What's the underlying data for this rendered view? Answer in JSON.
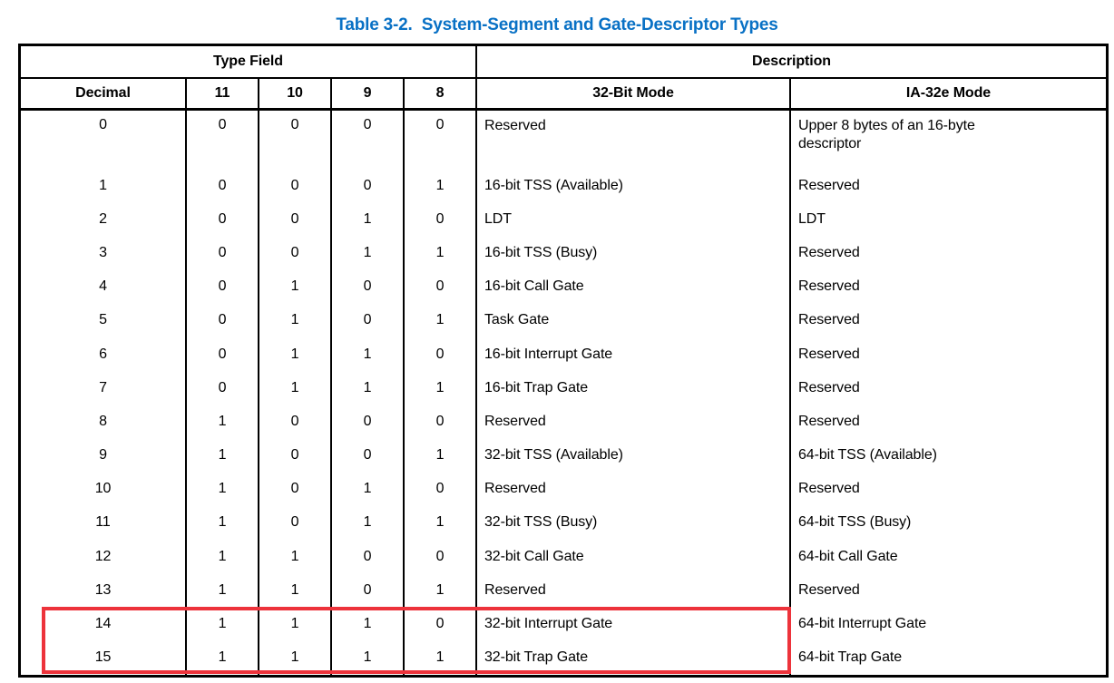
{
  "title": "Table 3-2.  System-Segment and Gate-Descriptor Types",
  "colors": {
    "title_blue": "#0971C5",
    "highlight_red": "#ED333B",
    "table_border": "#000000"
  },
  "table": {
    "group_headers": {
      "type_field": "Type Field",
      "description": "Description"
    },
    "columns": {
      "decimal": "Decimal",
      "b11": "11",
      "b10": "10",
      "b9": "9",
      "b8": "8",
      "mode32": "32-Bit Mode",
      "ia32e": "IA-32e Mode"
    },
    "rows": [
      {
        "decimal": "0",
        "b11": "0",
        "b10": "0",
        "b9": "0",
        "b8": "0",
        "mode32": "Reserved",
        "ia32e": "Upper 8 bytes of an 16-byte\ndescriptor"
      },
      {
        "decimal": "1",
        "b11": "0",
        "b10": "0",
        "b9": "0",
        "b8": "1",
        "mode32": "16-bit TSS (Available)",
        "ia32e": "Reserved"
      },
      {
        "decimal": "2",
        "b11": "0",
        "b10": "0",
        "b9": "1",
        "b8": "0",
        "mode32": "LDT",
        "ia32e": "LDT"
      },
      {
        "decimal": "3",
        "b11": "0",
        "b10": "0",
        "b9": "1",
        "b8": "1",
        "mode32": "16-bit TSS (Busy)",
        "ia32e": "Reserved"
      },
      {
        "decimal": "4",
        "b11": "0",
        "b10": "1",
        "b9": "0",
        "b8": "0",
        "mode32": "16-bit Call Gate",
        "ia32e": "Reserved"
      },
      {
        "decimal": "5",
        "b11": "0",
        "b10": "1",
        "b9": "0",
        "b8": "1",
        "mode32": "Task Gate",
        "ia32e": "Reserved"
      },
      {
        "decimal": "6",
        "b11": "0",
        "b10": "1",
        "b9": "1",
        "b8": "0",
        "mode32": "16-bit Interrupt Gate",
        "ia32e": "Reserved"
      },
      {
        "decimal": "7",
        "b11": "0",
        "b10": "1",
        "b9": "1",
        "b8": "1",
        "mode32": "16-bit Trap Gate",
        "ia32e": "Reserved"
      },
      {
        "decimal": "8",
        "b11": "1",
        "b10": "0",
        "b9": "0",
        "b8": "0",
        "mode32": "Reserved",
        "ia32e": "Reserved"
      },
      {
        "decimal": "9",
        "b11": "1",
        "b10": "0",
        "b9": "0",
        "b8": "1",
        "mode32": "32-bit TSS (Available)",
        "ia32e": "64-bit TSS (Available)"
      },
      {
        "decimal": "10",
        "b11": "1",
        "b10": "0",
        "b9": "1",
        "b8": "0",
        "mode32": "Reserved",
        "ia32e": "Reserved"
      },
      {
        "decimal": "11",
        "b11": "1",
        "b10": "0",
        "b9": "1",
        "b8": "1",
        "mode32": "32-bit TSS (Busy)",
        "ia32e": "64-bit TSS (Busy)"
      },
      {
        "decimal": "12",
        "b11": "1",
        "b10": "1",
        "b9": "0",
        "b8": "0",
        "mode32": "32-bit Call Gate",
        "ia32e": "64-bit Call Gate"
      },
      {
        "decimal": "13",
        "b11": "1",
        "b10": "1",
        "b9": "0",
        "b8": "1",
        "mode32": "Reserved",
        "ia32e": "Reserved"
      },
      {
        "decimal": "14",
        "b11": "1",
        "b10": "1",
        "b9": "1",
        "b8": "0",
        "mode32": "32-bit Interrupt Gate",
        "ia32e": "64-bit Interrupt Gate"
      },
      {
        "decimal": "15",
        "b11": "1",
        "b10": "1",
        "b9": "1",
        "b8": "1",
        "mode32": "32-bit Trap Gate",
        "ia32e": "64-bit Trap Gate"
      }
    ],
    "highlight": {
      "rows": "14-15",
      "columns": "Decimal through 32-Bit Mode",
      "color": "#ED333B"
    }
  }
}
